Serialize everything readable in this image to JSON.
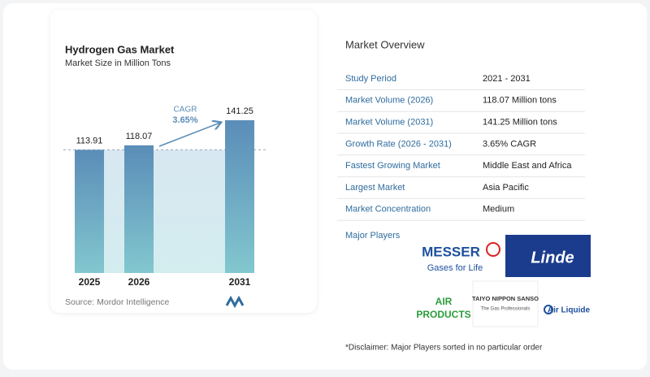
{
  "chart_data": {
    "type": "bar",
    "title": "Hydrogen Gas Market",
    "subtitle": "Market Size in Million Tons",
    "categories": [
      "2025",
      "2026",
      "2031"
    ],
    "values": [
      113.91,
      118.07,
      141.25
    ],
    "color": "#5b8db8",
    "annotation_label": "CAGR",
    "annotation_value": "3.65%",
    "source": "Source: Mordor Intelligence"
  },
  "overview": {
    "title": "Market Overview",
    "rows": [
      [
        "Study Period",
        "2021 - 2031"
      ],
      [
        "Market Volume (2026)",
        "118.07 Million tons"
      ],
      [
        "Market Volume (2031)",
        "141.25 Million tons"
      ],
      [
        "Growth Rate (2026 - 2031)",
        "3.65% CAGR"
      ],
      [
        "Fastest Growing Market",
        "Middle East and Africa"
      ],
      [
        "Largest Market",
        "Asia Pacific"
      ],
      [
        "Market Concentration",
        "Medium"
      ]
    ],
    "players_title": "Major Players",
    "players": [
      "MESSER",
      "Gases for Life",
      "Linde",
      "AIR",
      "PRODUCTS",
      "TAIYO NIPPON SANSO",
      "The Gas Professionals",
      "Air Liquide"
    ],
    "disclaimer": "*Disclaimer: Major Players sorted in no particular order"
  }
}
